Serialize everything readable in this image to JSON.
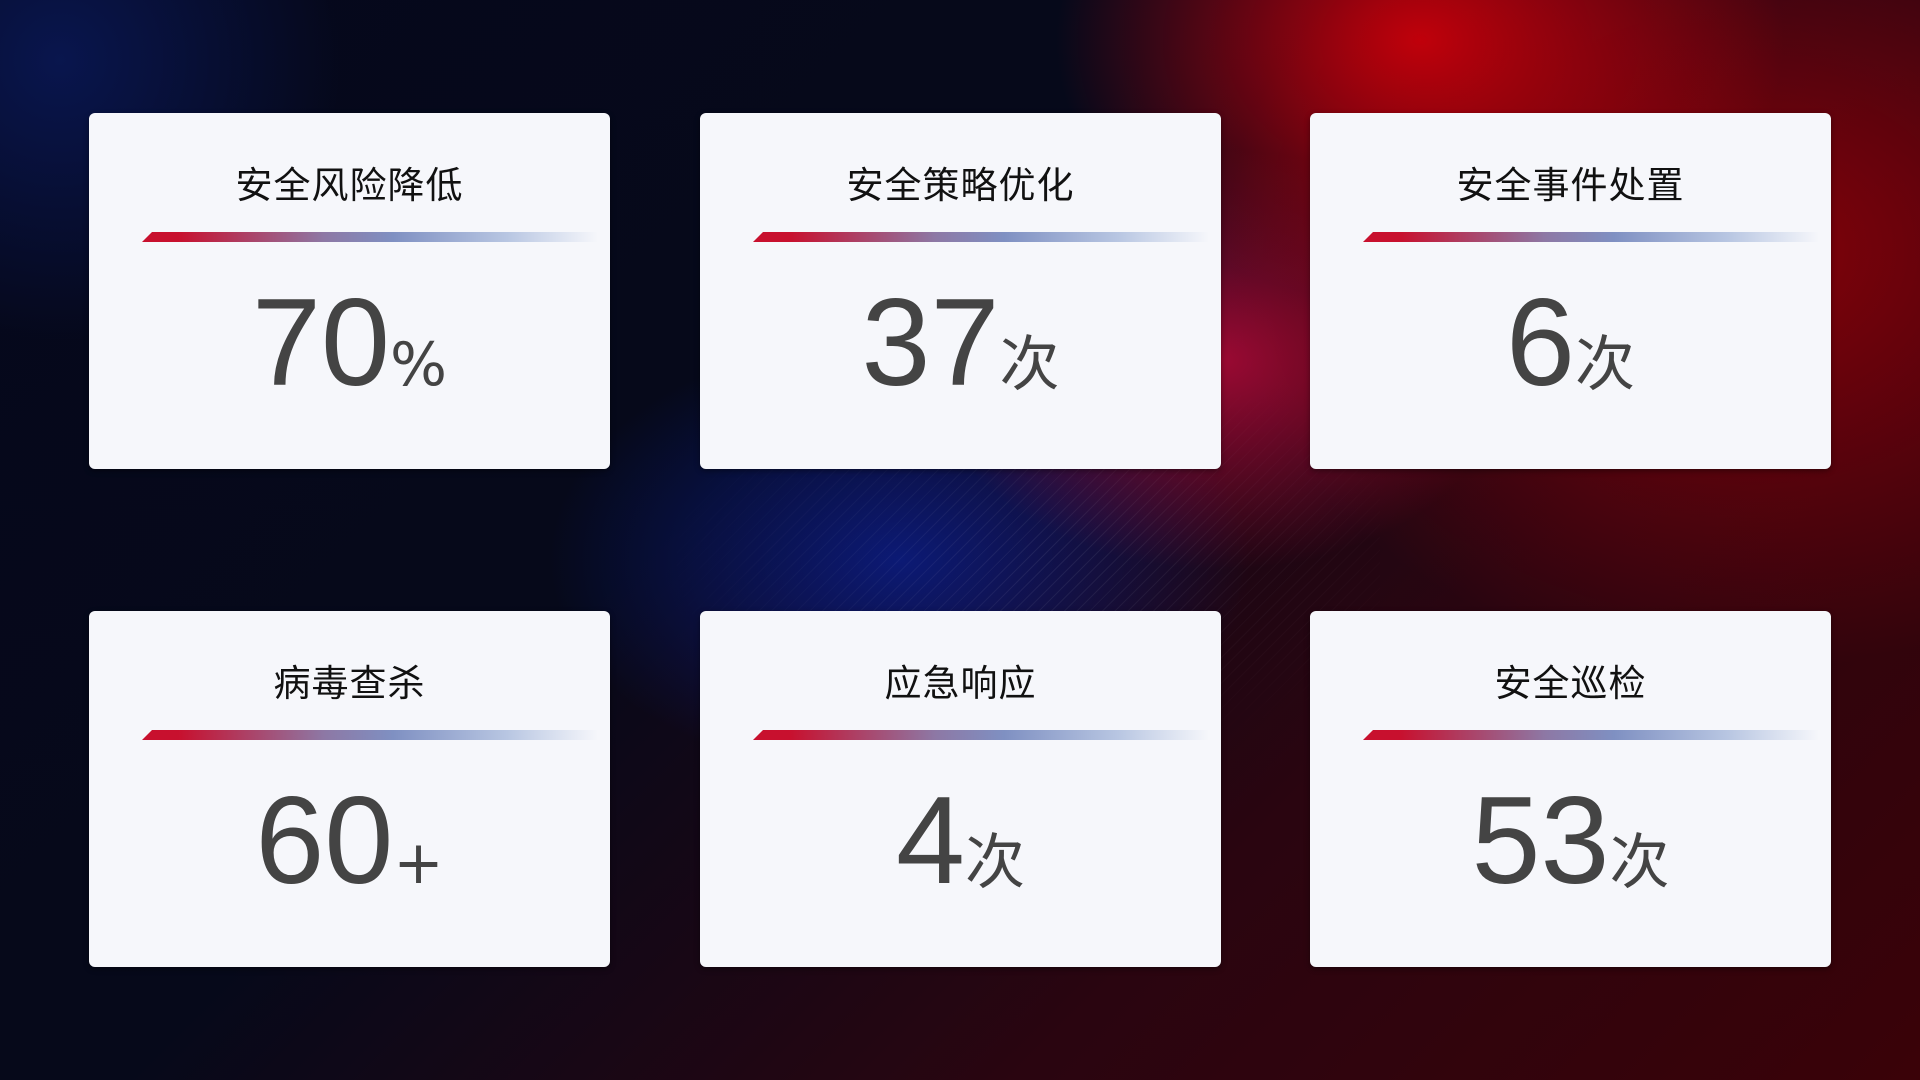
{
  "cards": [
    {
      "title": "安全风险降低",
      "number": "70",
      "unit": "%"
    },
    {
      "title": "安全策略优化",
      "number": "37",
      "unit": "次"
    },
    {
      "title": "安全事件处置",
      "number": "6",
      "unit": "次"
    },
    {
      "title": "病毒查杀",
      "number": "60",
      "unit": "+"
    },
    {
      "title": "应急响应",
      "number": "4",
      "unit": "次"
    },
    {
      "title": "安全巡检",
      "number": "53",
      "unit": "次"
    }
  ],
  "colors": {
    "accent_red": "#c8102e",
    "accent_blue": "#7f90c2",
    "card_bg": "#f6f7fb",
    "value_text": "#444444"
  }
}
